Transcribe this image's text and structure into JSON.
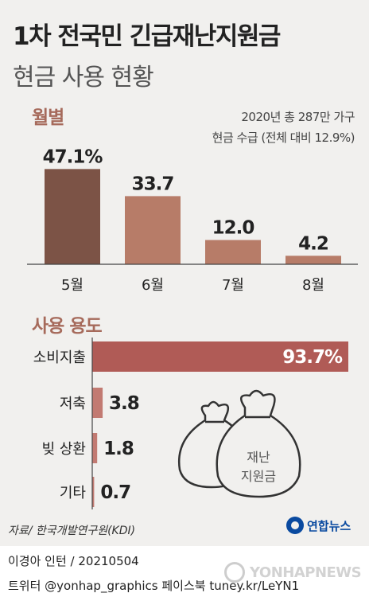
{
  "header": {
    "title": "1차 전국민 긴급재난지원금",
    "subtitle": "현금 사용 현황"
  },
  "chart_data": [
    {
      "type": "bar",
      "title": "월별",
      "note_lines": [
        "2020년 총 287만 가구",
        "현금 수급 (전체 대비 12.9%)"
      ],
      "categories": [
        "5월",
        "6월",
        "7월",
        "8월"
      ],
      "values": [
        47.1,
        33.7,
        12.0,
        4.2
      ],
      "value_labels": [
        "47.1%",
        "33.7",
        "12.0",
        "4.2"
      ],
      "colors": [
        "#7c5346",
        "#b77c68",
        "#b77c68",
        "#b77c68"
      ],
      "ylim": [
        0,
        50
      ]
    },
    {
      "type": "bar",
      "orientation": "horizontal",
      "title": "사용 용도",
      "categories": [
        "소비지출",
        "저축",
        "빚 상환",
        "기타"
      ],
      "values": [
        93.7,
        3.8,
        1.8,
        0.7
      ],
      "value_labels": [
        "93.7%",
        "3.8",
        "1.8",
        "0.7"
      ],
      "colors": [
        "#b05b56",
        "#c27a72",
        "#c27a72",
        "#c27a72"
      ],
      "xlim": [
        0,
        93.7
      ]
    }
  ],
  "illustration": {
    "bag_label_lines": [
      "재난",
      "지원금"
    ]
  },
  "footer": {
    "source": "자료/ 한국개발연구원(KDI)",
    "logo_text": "연합뉴스",
    "credit": "이경아 인턴 / 20210504",
    "social": "트위터 @yonhap_graphics  페이스북 tuney.kr/LeYN1",
    "watermark": "YONHAPNEWS"
  }
}
